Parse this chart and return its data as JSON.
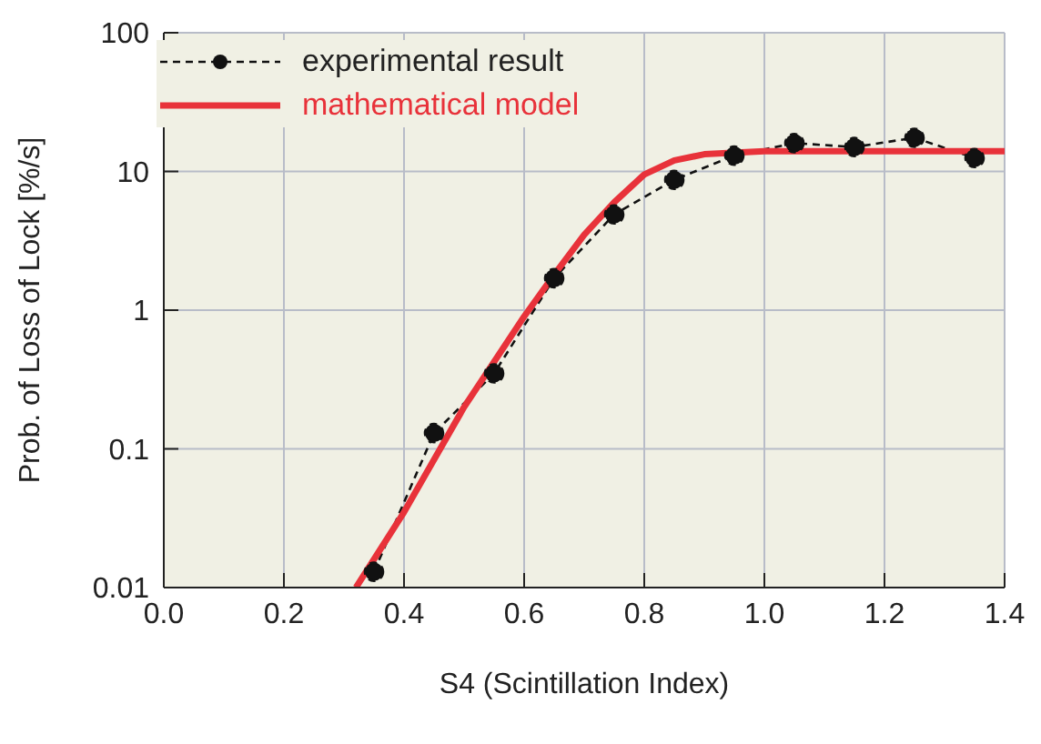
{
  "chart_data": {
    "type": "line",
    "xlabel": "S4 (Scintillation Index)",
    "ylabel": "Prob. of Loss of Lock [%/s]",
    "log": "y",
    "grid": true,
    "legend": "top left",
    "xlim": [
      0,
      1.4
    ],
    "xticks": [
      {
        "value": 0,
        "label": "0.0"
      },
      0.2,
      0.4,
      0.6,
      0.8,
      {
        "value": 1,
        "label": "1.0"
      },
      1.2,
      1.4
    ],
    "ylim": [
      0.01,
      100
    ],
    "yticks": [
      0.01,
      0.1,
      1,
      10,
      100
    ],
    "series": [
      {
        "name": "experimental result",
        "color": "#111111",
        "marker": "circle",
        "line_style": "dashed",
        "x": [
          0.35,
          0.45,
          0.55,
          0.65,
          0.75,
          0.85,
          0.95,
          1.05,
          1.15,
          1.25,
          1.35
        ],
        "values": [
          0.013,
          0.13,
          0.35,
          1.7,
          4.9,
          8.7,
          13,
          16,
          15,
          17.5,
          12.5
        ]
      },
      {
        "name": "mathematical model",
        "color": "#e8323a",
        "marker": "none",
        "line_style": "solid",
        "x": [
          0.32,
          0.4,
          0.5,
          0.6,
          0.65,
          0.7,
          0.75,
          0.8,
          0.85,
          0.9,
          1.0,
          1.2,
          1.4
        ],
        "values": [
          0.01,
          0.035,
          0.2,
          0.9,
          1.8,
          3.5,
          6,
          9.5,
          12,
          13.3,
          14,
          14,
          14
        ]
      }
    ]
  }
}
